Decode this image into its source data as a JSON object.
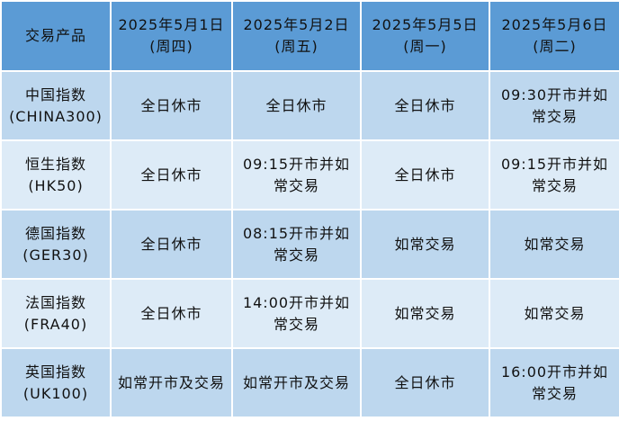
{
  "colors": {
    "header": "#5b9bd5",
    "row_odd": "#bdd7ee",
    "row_even": "#ddebf7"
  },
  "header": {
    "product": "交易产品",
    "dates": [
      {
        "date": "2025年5月1日",
        "weekday": "(周四)"
      },
      {
        "date": "2025年5月2日",
        "weekday": "(周五)"
      },
      {
        "date": "2025年5月5日",
        "weekday": "(周一)"
      },
      {
        "date": "2025年5月6日",
        "weekday": "(周二)"
      }
    ]
  },
  "rows": [
    {
      "name": "中国指数",
      "code": "(CHINA300)",
      "cells": [
        "全日休市",
        "全日休市",
        "全日休市",
        "09:30开市并如常交易"
      ]
    },
    {
      "name": "恒生指数",
      "code": "(HK50)",
      "cells": [
        "全日休市",
        "09:15开市并如常交易",
        "全日休市",
        "09:15开市并如常交易"
      ]
    },
    {
      "name": "德国指数",
      "code": "(GER30)",
      "cells": [
        "全日休市",
        "08:15开市并如常交易",
        "如常交易",
        "如常交易"
      ]
    },
    {
      "name": "法国指数",
      "code": "(FRA40)",
      "cells": [
        "全日休市",
        "14:00开市并如常交易",
        "如常交易",
        "如常交易"
      ]
    },
    {
      "name": "英国指数",
      "code": "(UK100)",
      "cells": [
        "如常开市及交易",
        "如常开市及交易",
        "全日休市",
        "16:00开市并如常交易"
      ]
    }
  ]
}
